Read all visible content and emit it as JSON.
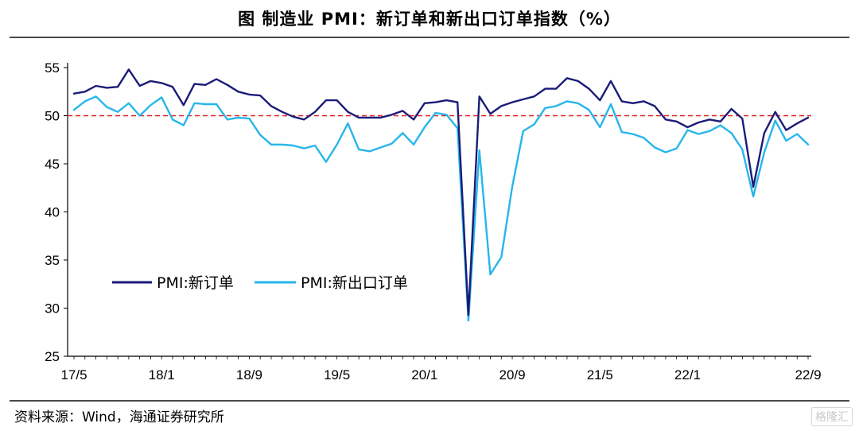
{
  "title": "图  制造业 PMI：新订单和新出口订单指数（%）",
  "source": "资料来源：Wind，海通证券研究所",
  "watermark": "格隆汇",
  "colors": {
    "new_orders": "#1b1c78",
    "new_export_orders": "#27b6ea",
    "reference_line": "#e02020",
    "axis": "#000000"
  },
  "chart_data": {
    "type": "line",
    "x_tick_labels": [
      "17/5",
      "18/1",
      "18/9",
      "19/5",
      "20/1",
      "20/9",
      "21/5",
      "22/1",
      "22/9"
    ],
    "y_ticks": [
      25,
      30,
      35,
      40,
      45,
      50,
      55
    ],
    "ylim": [
      25,
      55
    ],
    "reference_line": 50,
    "grid": false,
    "legend_position": "lower-left",
    "series": [
      {
        "name": "PMI:新订单",
        "values": [
          52.3,
          52.5,
          53.1,
          52.9,
          53.0,
          54.8,
          53.1,
          53.6,
          53.4,
          53.0,
          51.1,
          53.3,
          53.2,
          53.8,
          53.2,
          52.5,
          52.2,
          52.1,
          51.0,
          50.4,
          49.9,
          49.6,
          50.4,
          51.6,
          51.6,
          50.4,
          49.8,
          49.8,
          49.8,
          50.1,
          50.5,
          49.6,
          51.3,
          51.4,
          51.6,
          51.4,
          29.3,
          52.0,
          50.2,
          51.0,
          51.4,
          51.7,
          52.0,
          52.8,
          52.8,
          53.9,
          53.6,
          52.8,
          51.6,
          53.6,
          51.5,
          51.3,
          51.5,
          51.0,
          49.6,
          49.4,
          48.8,
          49.3,
          49.6,
          49.4,
          50.7,
          49.7,
          42.6,
          48.2,
          50.4,
          48.5,
          49.2,
          49.8
        ]
      },
      {
        "name": "PMI:新出口订单",
        "values": [
          50.6,
          51.5,
          52.0,
          50.9,
          50.4,
          51.3,
          50.0,
          51.1,
          51.9,
          49.6,
          49.0,
          51.3,
          51.2,
          51.2,
          49.6,
          49.8,
          49.7,
          48.0,
          47.0,
          47.0,
          46.9,
          46.6,
          46.9,
          45.2,
          47.0,
          49.2,
          46.5,
          46.3,
          46.7,
          47.1,
          48.2,
          47.0,
          48.8,
          50.3,
          50.1,
          48.7,
          28.7,
          46.4,
          33.5,
          35.3,
          42.6,
          48.4,
          49.1,
          50.8,
          51.0,
          51.5,
          51.3,
          50.6,
          48.8,
          51.2,
          48.3,
          48.1,
          47.7,
          46.7,
          46.2,
          46.6,
          48.5,
          48.1,
          48.4,
          49.0,
          48.2,
          46.5,
          41.6,
          46.2,
          49.5,
          47.4,
          48.1,
          47.0
        ]
      }
    ]
  }
}
